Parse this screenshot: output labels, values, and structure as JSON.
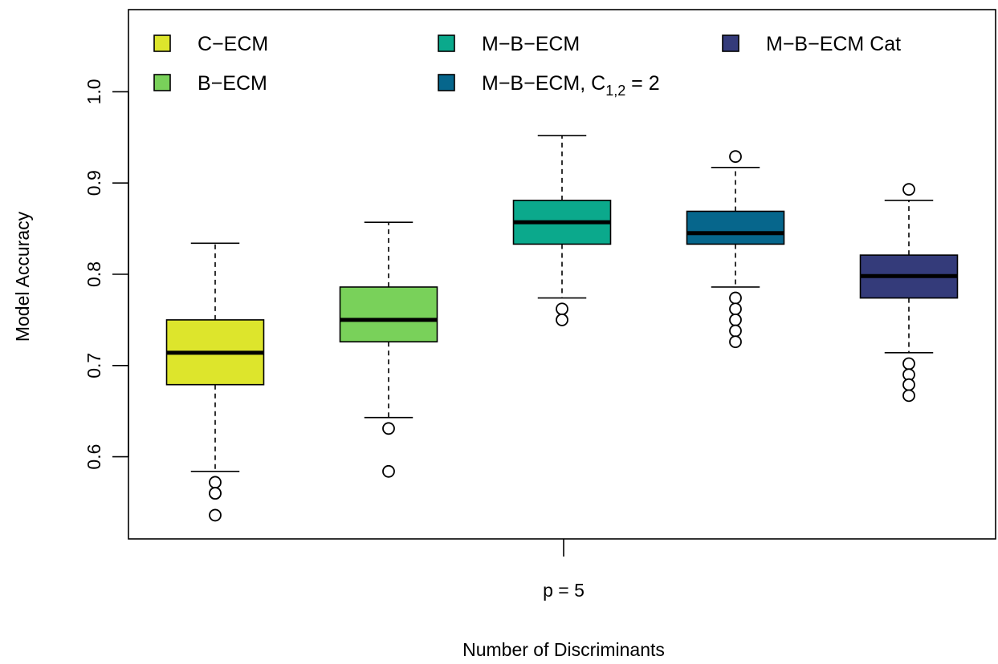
{
  "chart_data": {
    "type": "boxplot",
    "title": "",
    "xlabel": "Number of Discriminants",
    "ylabel": "Model Accuracy",
    "categories": [
      "p = 5"
    ],
    "ylim": [
      0.51,
      1.09
    ],
    "yticks": [
      0.6,
      0.7,
      0.8,
      0.9,
      1.0
    ],
    "ytick_labels": [
      "0.6",
      "0.7",
      "0.8",
      "0.9",
      "1.0"
    ],
    "grid": false,
    "legend_position": "top",
    "series": [
      {
        "name": "C−ECM",
        "legend_sub": "",
        "legend_suffix": "",
        "color": "#dde52c",
        "whisker_low": 0.584,
        "q1": 0.679,
        "median": 0.714,
        "q3": 0.75,
        "whisker_high": 0.834,
        "outliers": [
          0.572,
          0.56,
          0.56,
          0.536
        ]
      },
      {
        "name": "B−ECM",
        "legend_sub": "",
        "legend_suffix": "",
        "color": "#79d15a",
        "whisker_low": 0.643,
        "q1": 0.726,
        "median": 0.75,
        "q3": 0.786,
        "whisker_high": 0.857,
        "outliers": [
          0.631,
          0.584
        ]
      },
      {
        "name": "M−B−ECM",
        "legend_sub": "",
        "legend_suffix": "",
        "color": "#0ba98c",
        "whisker_low": 0.774,
        "q1": 0.833,
        "median": 0.857,
        "q3": 0.881,
        "whisker_high": 0.952,
        "outliers": [
          0.762,
          0.75
        ]
      },
      {
        "name": "M−B−ECM, C",
        "legend_sub": "1,2",
        "legend_suffix": " = 2",
        "color": "#06668c",
        "whisker_low": 0.786,
        "q1": 0.833,
        "median": 0.845,
        "q3": 0.869,
        "whisker_high": 0.917,
        "outliers": [
          0.929,
          0.774,
          0.762,
          0.75,
          0.738,
          0.726
        ]
      },
      {
        "name": "M−B−ECM Cat",
        "legend_sub": "",
        "legend_suffix": "",
        "color": "#343b7a",
        "whisker_low": 0.714,
        "q1": 0.774,
        "median": 0.798,
        "q3": 0.821,
        "whisker_high": 0.881,
        "outliers": [
          0.893,
          0.702,
          0.69,
          0.679,
          0.667
        ]
      }
    ]
  }
}
